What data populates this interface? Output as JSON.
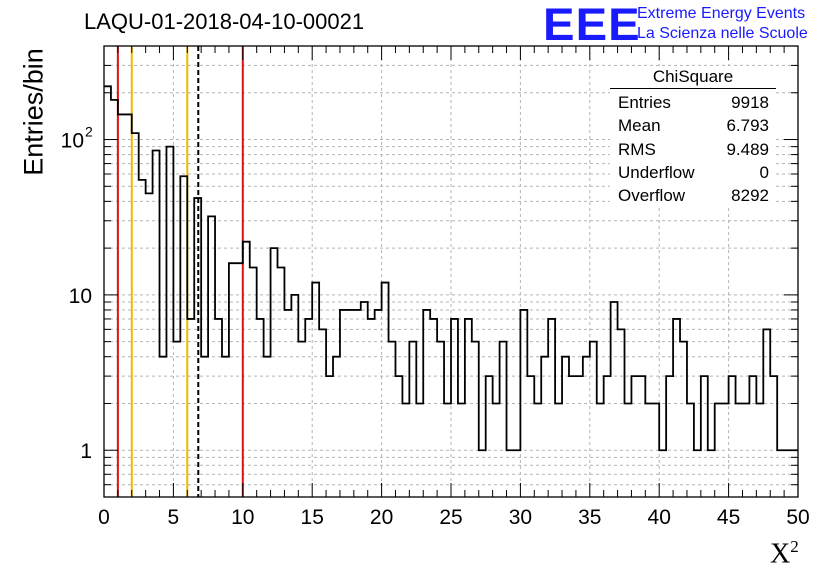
{
  "header": {
    "title": "LAQU-01-2018-04-10-00021",
    "logo": "EEE",
    "logo_line1": "Extreme Energy Events",
    "logo_line2": "La Scienza nelle Scuole"
  },
  "axes": {
    "ylabel": "Entries/bin",
    "xlabel": "X",
    "xlabel_sup": "2",
    "xlim": [
      0,
      50
    ],
    "ylim": [
      0.5,
      400
    ],
    "yscale": "log",
    "x_ticks": [
      "0",
      "5",
      "10",
      "15",
      "20",
      "25",
      "30",
      "35",
      "40",
      "45",
      "50"
    ],
    "y_ticks": [
      {
        "value": 1,
        "base": "1",
        "sup": ""
      },
      {
        "value": 10,
        "base": "10",
        "sup": ""
      },
      {
        "value": 100,
        "base": "10",
        "sup": "2"
      }
    ],
    "grid": true
  },
  "stats_box": {
    "title": "ChiSquare",
    "rows": [
      {
        "label": "Entries",
        "value": "9918"
      },
      {
        "label": "Mean",
        "value": "6.793"
      },
      {
        "label": "RMS",
        "value": "9.489"
      },
      {
        "label": "Underflow",
        "value": "0"
      },
      {
        "label": "Overflow",
        "value": "8292"
      }
    ]
  },
  "chart_data": {
    "type": "histogram",
    "title": "LAQU-01-2018-04-10-00021",
    "xlabel": "X²",
    "ylabel": "Entries/bin",
    "bin_width": 0.5,
    "bin_start": 0,
    "values": [
      220,
      180,
      145,
      145,
      110,
      55,
      45,
      85,
      4,
      90,
      5,
      58,
      7,
      42,
      4,
      32,
      7,
      4,
      16,
      16,
      22,
      15,
      7,
      4,
      20,
      15,
      8,
      10,
      5,
      7,
      12,
      6,
      3,
      4,
      8,
      8,
      8,
      9,
      7,
      8,
      12,
      5,
      3,
      2,
      5,
      2,
      8,
      7,
      5,
      2,
      7,
      2,
      7,
      5,
      1,
      3,
      2,
      5,
      1,
      1,
      8,
      3,
      2,
      4,
      7,
      2,
      4,
      3,
      3,
      4,
      5,
      2,
      3,
      9,
      6,
      2,
      3,
      3,
      2,
      2,
      1,
      3,
      7,
      5,
      2,
      1,
      3,
      1,
      2,
      2,
      3,
      2,
      2,
      3,
      2,
      6,
      3,
      1,
      1,
      1
    ],
    "vertical_lines": [
      {
        "x": 1,
        "color": "#dd1111",
        "style": "solid"
      },
      {
        "x": 2,
        "color": "#f0b800",
        "style": "solid"
      },
      {
        "x": 6,
        "color": "#f0b800",
        "style": "solid"
      },
      {
        "x": 6.793,
        "color": "#000000",
        "style": "dashed"
      },
      {
        "x": 10,
        "color": "#dd1111",
        "style": "solid"
      }
    ]
  }
}
